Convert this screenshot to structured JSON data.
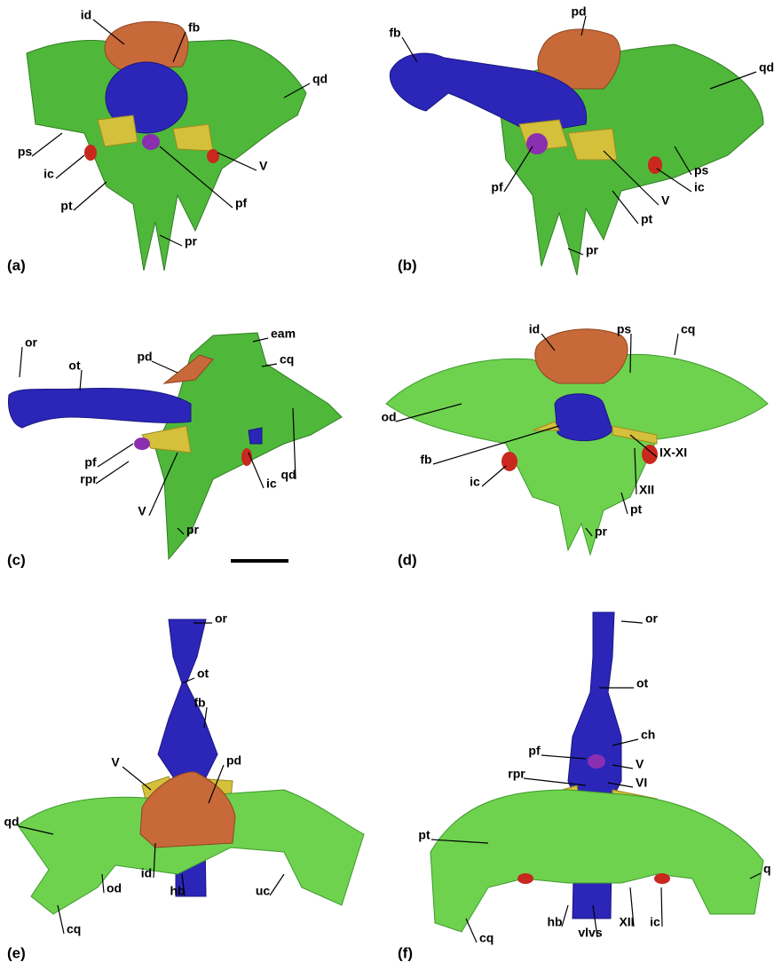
{
  "panels": [
    {
      "label": "(a)",
      "annotations": [
        "id",
        "fb",
        "qd",
        "ps",
        "ic",
        "V",
        "pt",
        "pf",
        "pr"
      ]
    },
    {
      "label": "(b)",
      "annotations": [
        "fb",
        "pd",
        "qd",
        "ps",
        "ic",
        "pf",
        "V",
        "pt",
        "pr"
      ]
    },
    {
      "label": "(c)",
      "annotations": [
        "eam",
        "pd",
        "cq",
        "or",
        "ot",
        "pf",
        "rpr",
        "V",
        "ic",
        "qd",
        "pr"
      ]
    },
    {
      "label": "(d)",
      "annotations": [
        "id",
        "ps",
        "cq",
        "od",
        "fb",
        "IX-XI",
        "ic",
        "XII",
        "pt",
        "pr"
      ]
    },
    {
      "label": "(e)",
      "annotations": [
        "or",
        "ot",
        "fb",
        "V",
        "pd",
        "qd",
        "id",
        "hb",
        "od",
        "cq",
        "uc"
      ]
    },
    {
      "label": "(f)",
      "annotations": [
        "or",
        "ot",
        "ch",
        "pf",
        "V",
        "rpr",
        "VI",
        "pt",
        "q",
        "hb",
        "vlvs",
        "XII",
        "ic",
        "cq"
      ]
    }
  ]
}
